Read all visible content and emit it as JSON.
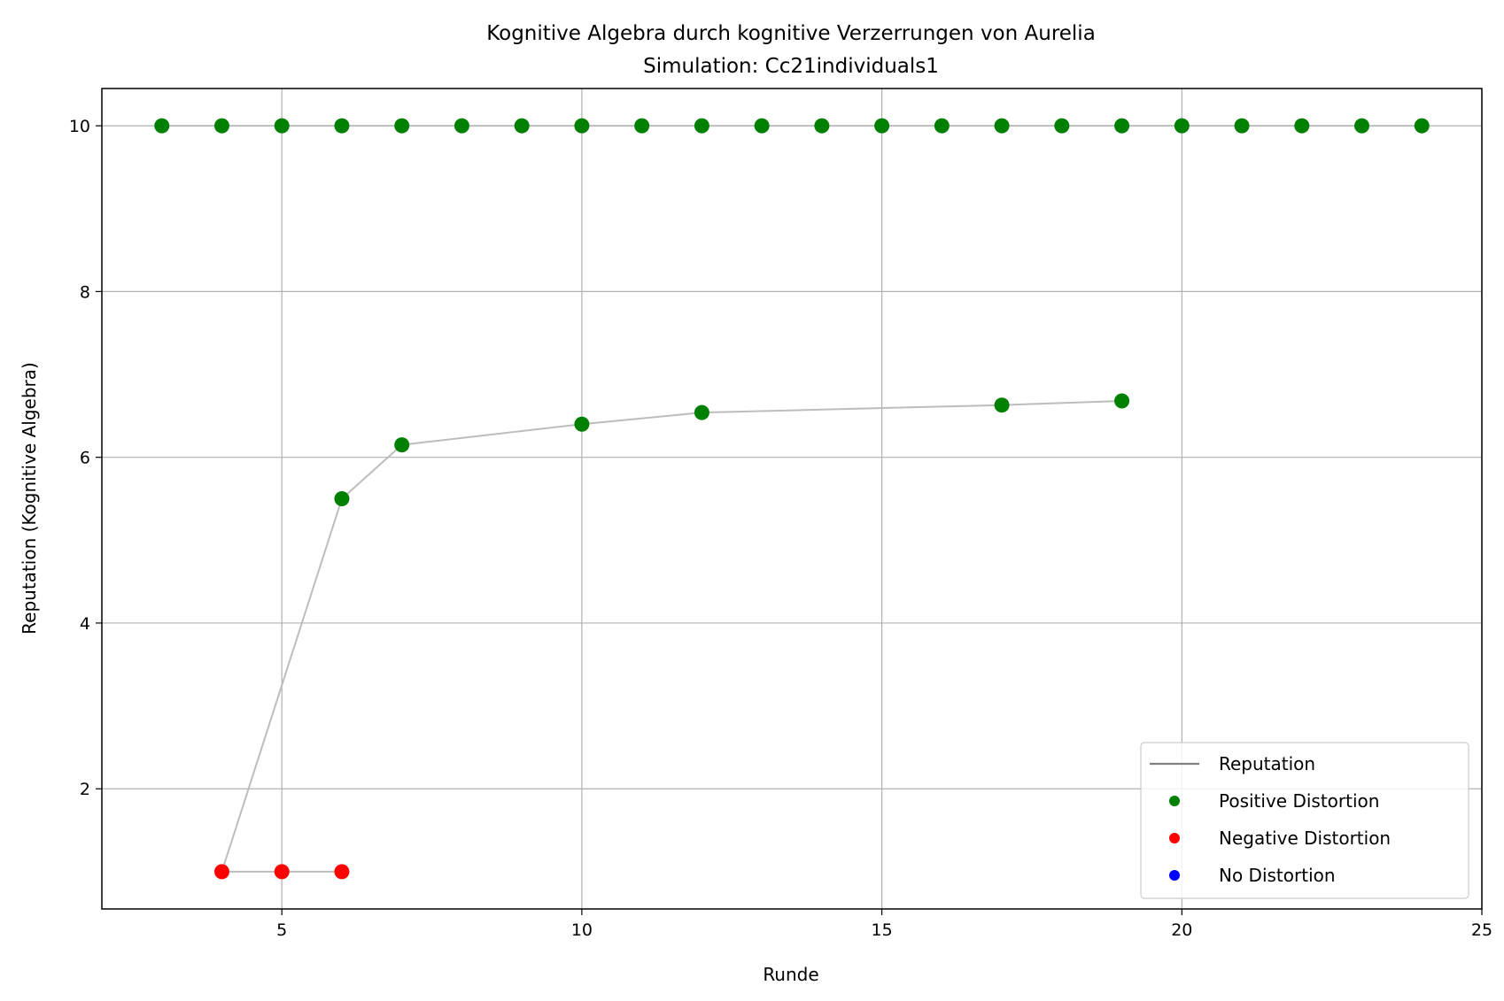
{
  "chart_data": {
    "type": "scatter",
    "title": "Kognitive Algebra durch kognitive Verzerrungen von Aurelia",
    "subtitle": "Simulation: Cc21individuals1",
    "xlabel": "Runde",
    "ylabel": "Reputation (Kognitive Algebra)",
    "xlim": [
      2,
      25
    ],
    "ylim": [
      0.55,
      10.45
    ],
    "xticks": [
      5,
      10,
      15,
      20,
      25
    ],
    "yticks": [
      2,
      4,
      6,
      8,
      10
    ],
    "grid": true,
    "legend_position": "lower-right",
    "reputation_lines": [
      {
        "name": "Reputation",
        "color": "#bdbdbd",
        "points": [
          [
            3,
            10
          ],
          [
            24,
            10
          ]
        ]
      },
      {
        "name": "Reputation",
        "color": "#bdbdbd",
        "points": [
          [
            4,
            1
          ],
          [
            5,
            1
          ],
          [
            6,
            1
          ]
        ]
      },
      {
        "name": "Reputation",
        "color": "#bdbdbd",
        "points": [
          [
            4,
            1
          ],
          [
            6,
            5.5
          ],
          [
            7,
            6.15
          ],
          [
            10,
            6.4
          ],
          [
            12,
            6.54
          ],
          [
            17,
            6.63
          ],
          [
            19,
            6.68
          ]
        ]
      }
    ],
    "series": [
      {
        "name": "Positive Distortion",
        "color": "#008000",
        "points": [
          [
            3,
            10
          ],
          [
            4,
            10
          ],
          [
            5,
            10
          ],
          [
            6,
            10
          ],
          [
            7,
            10
          ],
          [
            8,
            10
          ],
          [
            9,
            10
          ],
          [
            10,
            10
          ],
          [
            11,
            10
          ],
          [
            12,
            10
          ],
          [
            13,
            10
          ],
          [
            14,
            10
          ],
          [
            15,
            10
          ],
          [
            16,
            10
          ],
          [
            17,
            10
          ],
          [
            18,
            10
          ],
          [
            19,
            10
          ],
          [
            20,
            10
          ],
          [
            21,
            10
          ],
          [
            22,
            10
          ],
          [
            23,
            10
          ],
          [
            24,
            10
          ],
          [
            6,
            5.5
          ],
          [
            7,
            6.15
          ],
          [
            10,
            6.4
          ],
          [
            12,
            6.54
          ],
          [
            17,
            6.63
          ],
          [
            19,
            6.68
          ]
        ]
      },
      {
        "name": "Negative Distortion",
        "color": "#ff0000",
        "points": [
          [
            4,
            1
          ],
          [
            5,
            1
          ],
          [
            6,
            1
          ]
        ]
      },
      {
        "name": "No Distortion",
        "color": "#0000ff",
        "points": []
      }
    ],
    "legend": [
      {
        "label": "Reputation",
        "kind": "line",
        "color": "#808080"
      },
      {
        "label": "Positive Distortion",
        "kind": "marker",
        "color": "#008000"
      },
      {
        "label": "Negative Distortion",
        "kind": "marker",
        "color": "#ff0000"
      },
      {
        "label": "No Distortion",
        "kind": "marker",
        "color": "#0000ff"
      }
    ]
  }
}
